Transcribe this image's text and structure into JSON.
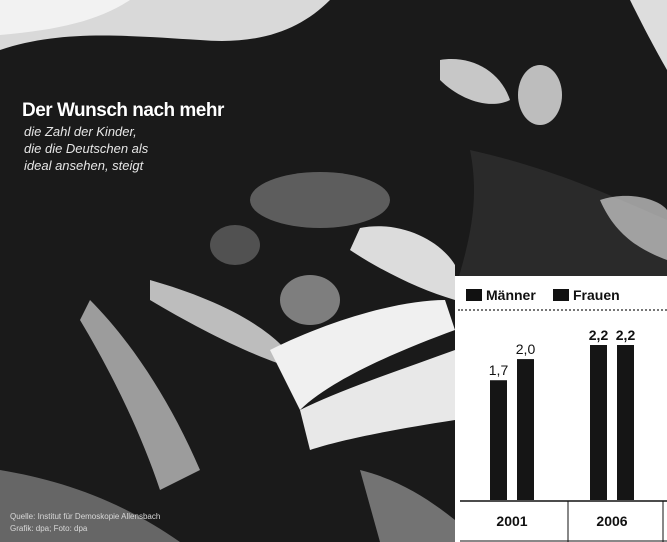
{
  "headline": "Der Wunsch nach mehr",
  "subtitle_lines": [
    "die Zahl der Kinder,",
    "die die Deutschen als",
    "ideal ansehen, steigt"
  ],
  "credit_lines": [
    "Quelle: Institut für Demoskopie Allensbach",
    "Grafik: dpa; Foto: dpa"
  ],
  "colors": {
    "bar": "#151515",
    "panel": "#ffffff",
    "text": "#111111"
  },
  "chart_data": {
    "type": "bar",
    "categories": [
      "2001",
      "2006"
    ],
    "series": [
      {
        "name": "Männer",
        "values": [
          1.7,
          2.2
        ]
      },
      {
        "name": "Frauen",
        "values": [
          2.0,
          2.2
        ]
      }
    ],
    "value_labels": [
      [
        "1,7",
        "2,2"
      ],
      [
        "2,0",
        "2,2"
      ]
    ],
    "ylim": [
      0,
      2.2
    ],
    "legend": "top"
  }
}
